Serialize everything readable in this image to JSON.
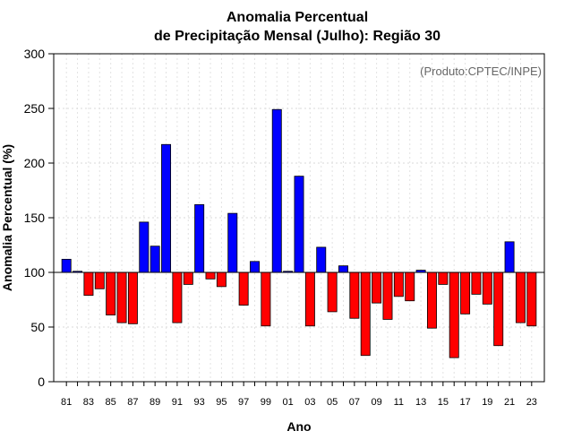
{
  "chart_data": {
    "type": "bar",
    "title_line1": "Anomalia Percentual",
    "title_line2": "de Precipitação Mensal (Julho): Região 30",
    "credit": "(Produto:CPTEC/INPE)",
    "xlabel": "Ano",
    "ylabel": "Anomalia Percentual (%)",
    "ylim": [
      0,
      300
    ],
    "yticks": [
      0,
      50,
      100,
      150,
      200,
      250,
      300
    ],
    "baseline": 100,
    "grid": true,
    "colors": {
      "above": "#0000ff",
      "below": "#ff0000"
    },
    "categories": [
      "81",
      "82",
      "83",
      "84",
      "85",
      "86",
      "87",
      "88",
      "89",
      "90",
      "91",
      "92",
      "93",
      "94",
      "95",
      "96",
      "97",
      "98",
      "99",
      "00",
      "01",
      "02",
      "03",
      "04",
      "05",
      "06",
      "07",
      "08",
      "09",
      "10",
      "11",
      "12",
      "13",
      "14",
      "15",
      "16",
      "17",
      "18",
      "19",
      "20",
      "21",
      "22",
      "23"
    ],
    "xtick_labels": [
      "81",
      "83",
      "85",
      "87",
      "89",
      "91",
      "93",
      "95",
      "97",
      "99",
      "01",
      "03",
      "05",
      "07",
      "09",
      "11",
      "13",
      "15",
      "17",
      "19",
      "21",
      "23"
    ],
    "values": [
      112,
      101,
      79,
      85,
      61,
      54,
      53,
      146,
      124,
      217,
      54,
      89,
      162,
      94,
      87,
      154,
      70,
      110,
      51,
      249,
      101,
      188,
      51,
      123,
      64,
      106,
      58,
      24,
      72,
      57,
      78,
      74,
      102,
      49,
      89,
      22,
      62,
      80,
      71,
      33,
      128,
      54,
      51
    ]
  }
}
